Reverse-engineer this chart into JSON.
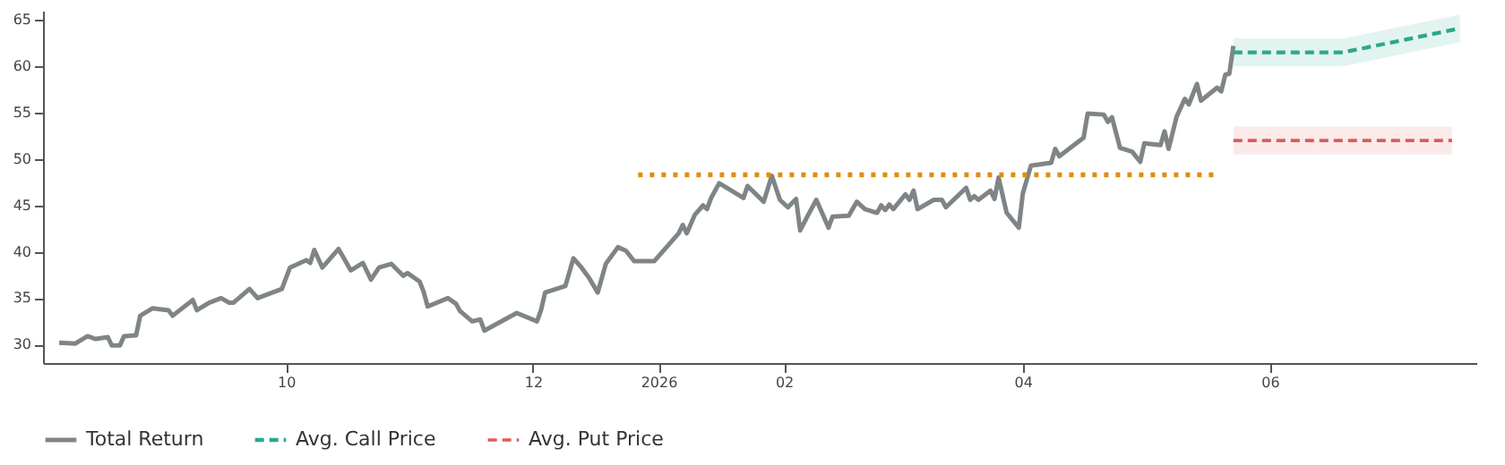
{
  "chart_data": {
    "type": "line",
    "xlim": [
      "2025-08-02",
      "2026-07-22"
    ],
    "xticks": [
      {
        "value": "2025-10-01",
        "label": "10"
      },
      {
        "value": "2025-12-01",
        "label": "12"
      },
      {
        "value": "2026-01-01",
        "label": "2026"
      },
      {
        "value": "2026-02-01",
        "label": "02"
      },
      {
        "value": "2026-04-01",
        "label": "04"
      },
      {
        "value": "2026-06-01",
        "label": "06"
      }
    ],
    "ylim": [
      28,
      66
    ],
    "yticks": [
      30,
      35,
      40,
      45,
      50,
      55,
      60,
      65
    ],
    "grid": false,
    "legend": "bottom",
    "series": [
      {
        "name": "Total Return",
        "color": "#7f8487",
        "line_style": "solid",
        "x": [
          "2025-08-06",
          "2025-08-10",
          "2025-08-13",
          "2025-08-15",
          "2025-08-18",
          "2025-08-19",
          "2025-08-21",
          "2025-08-22",
          "2025-08-25",
          "2025-08-26",
          "2025-08-29",
          "2025-09-02",
          "2025-09-03",
          "2025-09-08",
          "2025-09-09",
          "2025-09-12",
          "2025-09-15",
          "2025-09-17",
          "2025-09-18",
          "2025-09-22",
          "2025-09-24",
          "2025-09-30",
          "2025-10-02",
          "2025-10-06",
          "2025-10-07",
          "2025-10-08",
          "2025-10-10",
          "2025-10-14",
          "2025-10-17",
          "2025-10-20",
          "2025-10-22",
          "2025-10-24",
          "2025-10-27",
          "2025-10-30",
          "2025-10-31",
          "2025-11-03",
          "2025-11-04",
          "2025-11-05",
          "2025-11-10",
          "2025-11-12",
          "2025-11-13",
          "2025-11-16",
          "2025-11-18",
          "2025-11-19",
          "2025-11-27",
          "2025-12-02",
          "2025-12-03",
          "2025-12-04",
          "2025-12-09",
          "2025-12-11",
          "2025-12-13",
          "2025-12-15",
          "2025-12-17",
          "2025-12-19",
          "2025-12-22",
          "2025-12-24",
          "2025-12-26",
          "2025-12-31",
          "2026-01-03",
          "2026-01-06",
          "2026-01-07",
          "2026-01-08",
          "2026-01-10",
          "2026-01-12",
          "2026-01-13",
          "2026-01-14",
          "2026-01-16",
          "2026-01-22",
          "2026-01-23",
          "2026-01-27",
          "2026-01-29",
          "2026-01-31",
          "2026-02-02",
          "2026-02-04",
          "2026-02-05",
          "2026-02-07",
          "2026-02-09",
          "2026-02-12",
          "2026-02-13",
          "2026-02-17",
          "2026-02-19",
          "2026-02-21",
          "2026-02-24",
          "2026-02-25",
          "2026-02-26",
          "2026-02-27",
          "2026-02-28",
          "2026-03-03",
          "2026-03-04",
          "2026-03-05",
          "2026-03-06",
          "2026-03-10",
          "2026-03-12",
          "2026-03-13",
          "2026-03-18",
          "2026-03-19",
          "2026-03-20",
          "2026-03-21",
          "2026-03-24",
          "2026-03-25",
          "2026-03-26",
          "2026-03-28",
          "2026-03-31",
          "2026-04-01",
          "2026-04-03",
          "2026-04-08",
          "2026-04-09",
          "2026-04-10",
          "2026-04-16",
          "2026-04-17",
          "2026-04-21",
          "2026-04-22",
          "2026-04-23",
          "2026-04-25",
          "2026-04-28",
          "2026-04-30",
          "2026-05-01",
          "2026-05-05",
          "2026-05-06",
          "2026-05-07",
          "2026-05-09",
          "2026-05-11",
          "2026-05-12",
          "2026-05-14",
          "2026-05-15",
          "2026-05-19",
          "2026-05-20",
          "2026-05-21",
          "2026-05-22",
          "2026-05-23"
        ],
        "values": [
          30.2,
          30.1,
          30.9,
          30.6,
          30.8,
          29.9,
          29.9,
          30.9,
          31.0,
          33.1,
          33.9,
          33.7,
          33.1,
          34.8,
          33.7,
          34.5,
          35.0,
          34.5,
          34.5,
          36.0,
          35.0,
          36.0,
          38.3,
          39.1,
          38.8,
          40.2,
          38.3,
          40.3,
          38.0,
          38.8,
          37.0,
          38.3,
          38.7,
          37.4,
          37.7,
          36.8,
          35.7,
          34.1,
          35.0,
          34.4,
          33.6,
          32.5,
          32.7,
          31.5,
          33.4,
          32.5,
          33.7,
          35.6,
          36.3,
          39.3,
          38.3,
          37.1,
          35.6,
          38.7,
          40.5,
          40.1,
          39.0,
          39.0,
          40.5,
          42.0,
          42.9,
          42.0,
          44.0,
          45.0,
          44.6,
          45.8,
          47.4,
          45.8,
          47.1,
          45.4,
          48.2,
          45.6,
          44.8,
          45.7,
          42.3,
          44.0,
          45.6,
          42.6,
          43.8,
          43.9,
          45.4,
          44.6,
          44.2,
          45.0,
          44.5,
          45.1,
          44.6,
          46.2,
          45.6,
          46.6,
          44.6,
          45.6,
          45.6,
          44.8,
          46.9,
          45.6,
          46.0,
          45.6,
          46.6,
          45.7,
          48.0,
          44.2,
          42.6,
          46.3,
          49.3,
          49.6,
          51.1,
          50.3,
          52.3,
          54.9,
          54.8,
          54.0,
          54.5,
          51.2,
          50.8,
          49.7,
          51.7,
          51.5,
          53.0,
          51.1,
          54.6,
          56.5,
          55.9,
          58.1,
          56.3,
          57.7,
          57.3,
          59.1,
          59.2,
          62.2
        ]
      },
      {
        "name": "Avg. Call Price",
        "color": "#2aa88a",
        "line_style": "dashed",
        "x": [
          "2026-05-23",
          "2026-06-19",
          "2026-07-18"
        ],
        "values": [
          61.5,
          61.5,
          64.1
        ],
        "lower": [
          60.0,
          60.0,
          62.6
        ],
        "upper": [
          63.0,
          63.0,
          65.6
        ]
      },
      {
        "name": "Avg. Put Price",
        "color": "#e05a5a",
        "line_style": "dashed",
        "x": [
          "2026-05-23",
          "2026-07-16"
        ],
        "values": [
          52.0,
          52.0
        ],
        "lower": [
          50.5,
          50.5
        ],
        "upper": [
          53.5,
          53.5
        ]
      },
      {
        "color": "#e08e0b",
        "line_style": "dotted",
        "x": [
          "2025-12-27",
          "2026-05-19"
        ],
        "values": [
          48.3,
          48.3
        ]
      }
    ]
  }
}
